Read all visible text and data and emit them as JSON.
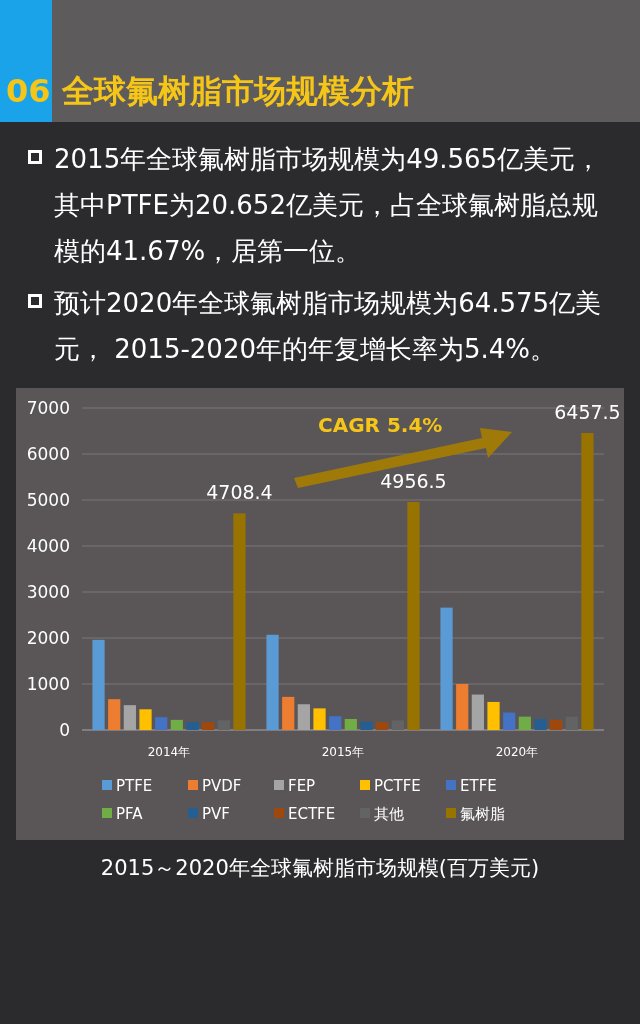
{
  "chart_data": {
    "type": "bar",
    "title": "06 全球氟树脂市场规模分析",
    "categories": [
      "2014年",
      "2015年",
      "2020年"
    ],
    "series": [
      {
        "name": "PTFE",
        "color": "#5b9bd5",
        "values": [
          1960,
          2070,
          2660
        ]
      },
      {
        "name": "PVDF",
        "color": "#ed7d31",
        "values": [
          670,
          720,
          1000
        ]
      },
      {
        "name": "FEP",
        "color": "#a5a5a5",
        "values": [
          540,
          560,
          770
        ]
      },
      {
        "name": "PCTFE",
        "color": "#ffc000",
        "values": [
          450,
          470,
          610
        ]
      },
      {
        "name": "ETFE",
        "color": "#4472c4",
        "values": [
          280,
          300,
          380
        ]
      },
      {
        "name": "PFA",
        "color": "#70ad47",
        "values": [
          220,
          240,
          290
        ]
      },
      {
        "name": "PVF",
        "color": "#255e91",
        "values": [
          170,
          180,
          240
        ]
      },
      {
        "name": "ECTFE",
        "color": "#9e480e",
        "values": [
          170,
          170,
          220
        ]
      },
      {
        "name": "其他",
        "color": "#636363",
        "values": [
          210,
          210,
          290
        ]
      },
      {
        "name": "氟树脂",
        "color": "#997300",
        "values": [
          4708.4,
          4956.5,
          6457.5
        ],
        "value_labels": [
          "4708.4",
          "4956.5",
          "6457.5"
        ]
      }
    ],
    "ylim": [
      0,
      7000
    ],
    "yticks": [
      0,
      1000,
      2000,
      3000,
      4000,
      5000,
      6000,
      7000
    ],
    "grid": "y",
    "legend": "bottom",
    "annotations": [
      "2015年全球氟树脂市场规模为49.565亿美元，其中PTFE为20.652亿美元，占全球氟树脂总规模的41.67%，居第一位。",
      "预计2020年全球氟树脂市场规模为64.575亿美元， 2015-2020年的年复增长率为5.4%。",
      "CAGR 5.4%",
      "2015～2020年全球氟树脂市场规模(百万美元)"
    ]
  }
}
